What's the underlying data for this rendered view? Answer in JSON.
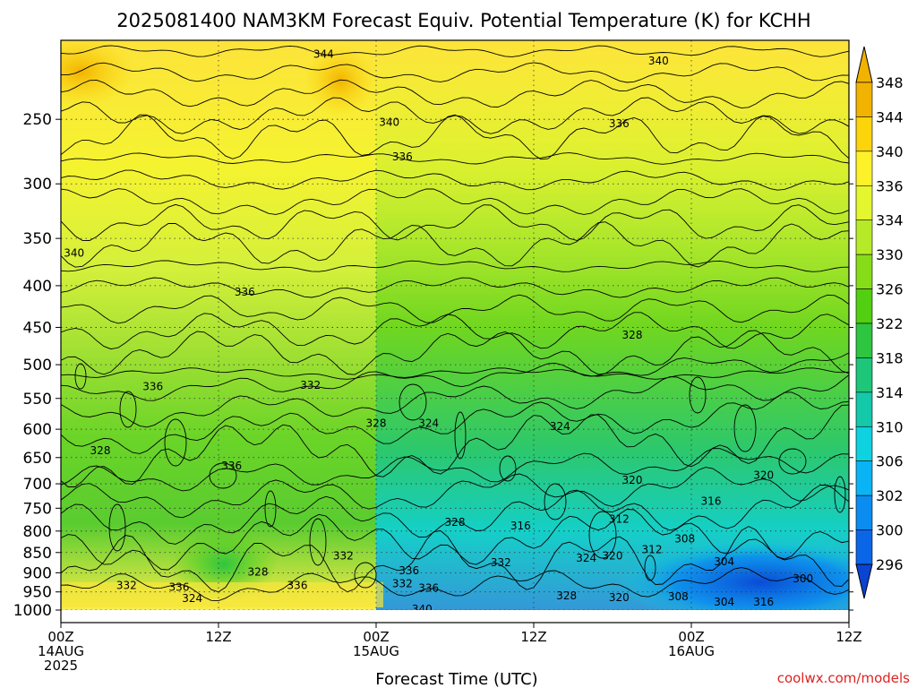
{
  "chart_data": {
    "type": "heatmap",
    "title": "2025081400 NAM3KM Forecast Equiv. Potential Temperature (K) for KCHH",
    "xlabel": "Forecast Time (UTC)",
    "ylabel": "",
    "x_ticks": [
      {
        "hour": 0,
        "line1": "00Z",
        "line2": "14AUG",
        "line3": "2025"
      },
      {
        "hour": 12,
        "line1": "12Z",
        "line2": "",
        "line3": ""
      },
      {
        "hour": 24,
        "line1": "00Z",
        "line2": "15AUG",
        "line3": ""
      },
      {
        "hour": 36,
        "line1": "12Z",
        "line2": "",
        "line3": ""
      },
      {
        "hour": 48,
        "line1": "00Z",
        "line2": "16AUG",
        "line3": ""
      },
      {
        "hour": 60,
        "line1": "12Z",
        "line2": "",
        "line3": ""
      }
    ],
    "xlim_hours": [
      0,
      60
    ],
    "y_ticks": [
      "250",
      "300",
      "350",
      "400",
      "450",
      "500",
      "550",
      "600",
      "650",
      "700",
      "750",
      "800",
      "850",
      "900",
      "950",
      "1000"
    ],
    "y_tick_values": [
      250,
      300,
      350,
      400,
      450,
      500,
      550,
      600,
      650,
      700,
      750,
      800,
      850,
      900,
      950,
      1000
    ],
    "ylim_hpa": [
      200,
      1000
    ],
    "y_scale": "log-pressure",
    "grid": true,
    "colorbar": {
      "labels": [
        "348",
        "344",
        "340",
        "336",
        "334",
        "330",
        "326",
        "322",
        "318",
        "314",
        "310",
        "306",
        "302",
        "300",
        "296"
      ],
      "colors": [
        "#f2b200",
        "#fbd40b",
        "#fdf22a",
        "#e4f62e",
        "#b6ea28",
        "#86dc18",
        "#52cf10",
        "#2ec640",
        "#1ec67a",
        "#14c8aa",
        "#0ed2e0",
        "#0ab4f4",
        "#0a8cf0",
        "#0a66e6",
        "#0a44d2"
      ]
    },
    "contour_labels": [
      {
        "text": "344",
        "hour": 20.0,
        "p": 208
      },
      {
        "text": "340",
        "hour": 45.5,
        "p": 212
      },
      {
        "text": "340",
        "hour": 25.0,
        "p": 252
      },
      {
        "text": "336",
        "hour": 42.5,
        "p": 253
      },
      {
        "text": "336",
        "hour": 26.0,
        "p": 278
      },
      {
        "text": "340",
        "hour": 1.0,
        "p": 365
      },
      {
        "text": "336",
        "hour": 14.0,
        "p": 407
      },
      {
        "text": "328",
        "hour": 43.5,
        "p": 460
      },
      {
        "text": "336",
        "hour": 7.0,
        "p": 532
      },
      {
        "text": "332",
        "hour": 19.0,
        "p": 530
      },
      {
        "text": "328",
        "hour": 24.0,
        "p": 590
      },
      {
        "text": "324",
        "hour": 28.0,
        "p": 590
      },
      {
        "text": "324",
        "hour": 38.0,
        "p": 595
      },
      {
        "text": "328",
        "hour": 3.0,
        "p": 637
      },
      {
        "text": "336",
        "hour": 13.0,
        "p": 665
      },
      {
        "text": "320",
        "hour": 43.5,
        "p": 693
      },
      {
        "text": "320",
        "hour": 53.5,
        "p": 683
      },
      {
        "text": "316",
        "hour": 49.5,
        "p": 735
      },
      {
        "text": "312",
        "hour": 42.5,
        "p": 773
      },
      {
        "text": "328",
        "hour": 30.0,
        "p": 780
      },
      {
        "text": "316",
        "hour": 35.0,
        "p": 788
      },
      {
        "text": "308",
        "hour": 47.5,
        "p": 818
      },
      {
        "text": "312",
        "hour": 45.0,
        "p": 843
      },
      {
        "text": "332",
        "hour": 21.5,
        "p": 858
      },
      {
        "text": "320",
        "hour": 42.0,
        "p": 858
      },
      {
        "text": "324",
        "hour": 40.0,
        "p": 863
      },
      {
        "text": "304",
        "hour": 50.5,
        "p": 872
      },
      {
        "text": "332",
        "hour": 33.5,
        "p": 875
      },
      {
        "text": "336",
        "hour": 26.5,
        "p": 895
      },
      {
        "text": "328",
        "hour": 15.0,
        "p": 898
      },
      {
        "text": "300",
        "hour": 56.5,
        "p": 915
      },
      {
        "text": "332",
        "hour": 5.0,
        "p": 933
      },
      {
        "text": "336",
        "hour": 9.0,
        "p": 938
      },
      {
        "text": "336",
        "hour": 18.0,
        "p": 933
      },
      {
        "text": "332",
        "hour": 26.0,
        "p": 928
      },
      {
        "text": "336",
        "hour": 28.0,
        "p": 940
      },
      {
        "text": "324",
        "hour": 10.0,
        "p": 968
      },
      {
        "text": "328",
        "hour": 38.5,
        "p": 960
      },
      {
        "text": "320",
        "hour": 42.5,
        "p": 965
      },
      {
        "text": "308",
        "hour": 47.0,
        "p": 963
      },
      {
        "text": "304",
        "hour": 50.5,
        "p": 978
      },
      {
        "text": "316",
        "hour": 53.5,
        "p": 977
      },
      {
        "text": "340",
        "hour": 27.5,
        "p": 998
      }
    ]
  },
  "credit": "coolwx.com/models",
  "colors": {
    "ground": "#a0522d",
    "plot_border": "#000000"
  }
}
